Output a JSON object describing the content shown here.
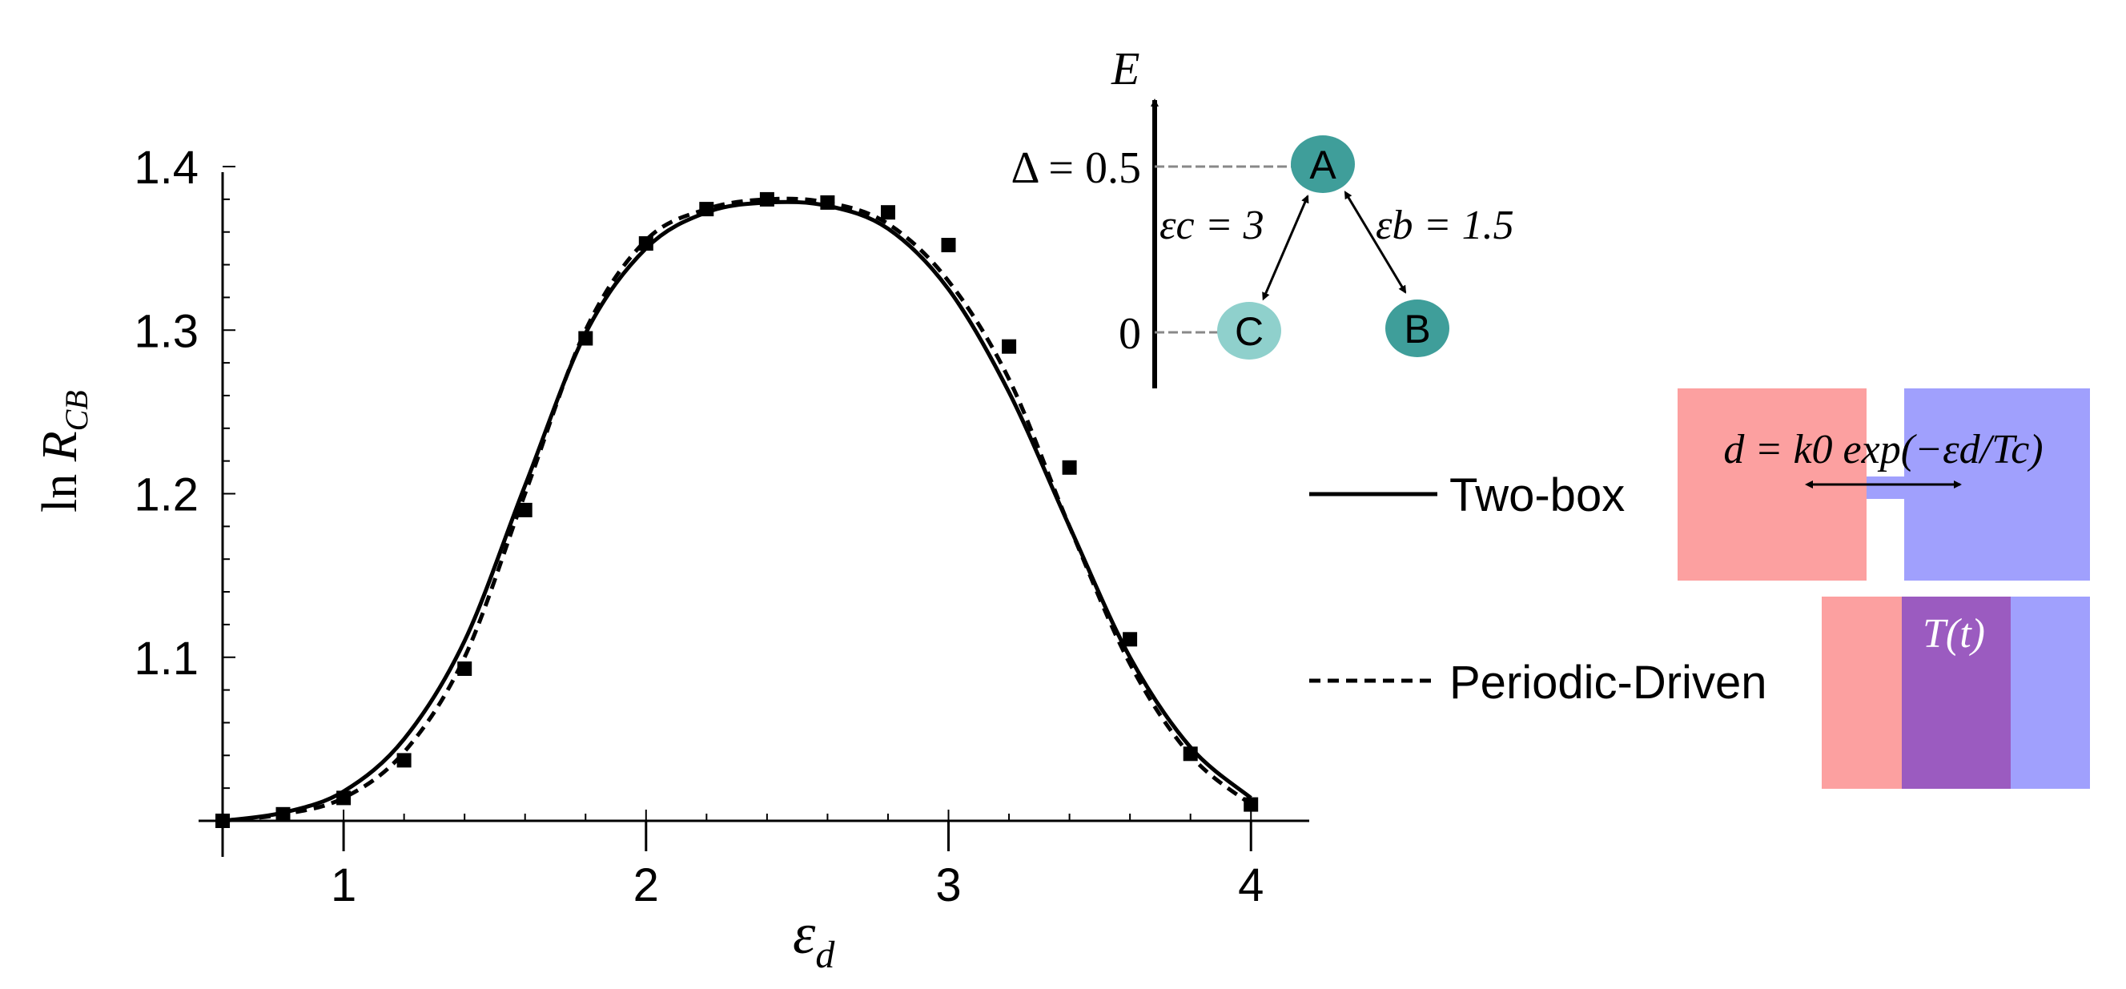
{
  "chart_data": {
    "type": "line",
    "xlabel": "εd",
    "ylabel": "ln RCB",
    "xlim": [
      0.6,
      4.1
    ],
    "ylim": [
      1.0,
      1.4
    ],
    "x_ticks": [
      1,
      2,
      3,
      4
    ],
    "y_ticks": [
      1.1,
      1.2,
      1.3,
      1.4
    ],
    "grid": false,
    "legend_position": "right",
    "series": [
      {
        "name": "Two-box",
        "style": "solid",
        "x": [
          0.6,
          0.8,
          1.0,
          1.2,
          1.4,
          1.6,
          1.8,
          2.0,
          2.2,
          2.4,
          2.6,
          2.8,
          3.0,
          3.2,
          3.4,
          3.6,
          3.8,
          4.0
        ],
        "y": [
          1.0,
          1.005,
          1.018,
          1.05,
          1.11,
          1.205,
          1.298,
          1.35,
          1.372,
          1.378,
          1.376,
          1.362,
          1.325,
          1.262,
          1.18,
          1.1,
          1.045,
          1.014
        ]
      },
      {
        "name": "Periodic-Driven",
        "style": "dashed",
        "x": [
          0.6,
          0.8,
          1.0,
          1.2,
          1.4,
          1.6,
          1.8,
          2.0,
          2.2,
          2.4,
          2.6,
          2.8,
          3.0,
          3.2,
          3.4,
          3.6,
          3.8,
          4.0
        ],
        "y": [
          1.0,
          1.004,
          1.014,
          1.042,
          1.1,
          1.2,
          1.3,
          1.355,
          1.374,
          1.38,
          1.378,
          1.365,
          1.33,
          1.27,
          1.18,
          1.096,
          1.04,
          1.01
        ]
      },
      {
        "name": "",
        "style": "markers",
        "x": [
          0.6,
          0.8,
          1.0,
          1.2,
          1.4,
          1.6,
          1.8,
          2.0,
          2.2,
          2.4,
          2.6,
          2.8,
          3.0,
          3.2,
          3.4,
          3.6,
          3.8,
          4.0
        ],
        "y": [
          1.0,
          1.004,
          1.014,
          1.037,
          1.093,
          1.19,
          1.295,
          1.353,
          1.374,
          1.38,
          1.378,
          1.372,
          1.352,
          1.29,
          1.216,
          1.111,
          1.041,
          1.01
        ]
      }
    ]
  },
  "legend": {
    "two_box": "Two-box",
    "periodic": "Periodic-Driven"
  },
  "axes": {
    "x_tick_labels": [
      "1",
      "2",
      "3",
      "4"
    ],
    "y_tick_labels": [
      "1.1",
      "1.2",
      "1.3",
      "1.4"
    ]
  },
  "energy_diagram": {
    "axis_label": "E",
    "level_high_label": "Δ = 0.5",
    "level_low_label": "0",
    "node_a": "A",
    "node_b": "B",
    "node_c": "C",
    "edge_ca_label": "εc = 3",
    "edge_ab_label": "εb = 1.5",
    "color_high": "#3f9e9a",
    "color_low": "#8fd0cc"
  },
  "boxes": {
    "two_box_formula": "d = k0 exp(−εd/Tc)",
    "driven_label": "T(t)",
    "color_red": "#fca0a0",
    "color_blue": "#a0a0fd",
    "color_overlap": "#9b5bc0"
  }
}
